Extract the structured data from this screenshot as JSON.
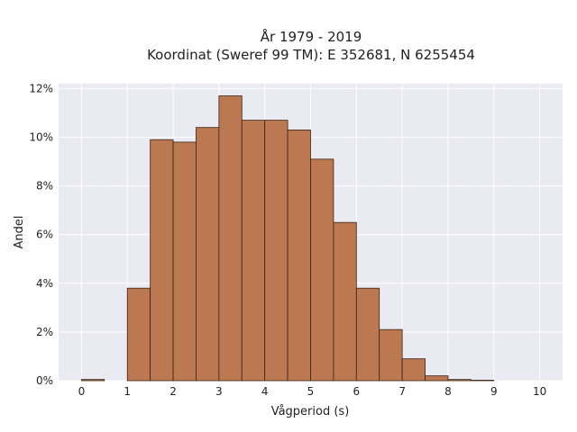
{
  "chart_data": {
    "type": "bar",
    "title_line1": "År 1979 - 2019",
    "title_line2": "Koordinat (Sweref 99 TM): E 352681, N 6255454",
    "xlabel": "Vågperiod (s)",
    "ylabel": "Andel",
    "bin_width": 0.5,
    "x": [
      0,
      0.5,
      1,
      1.5,
      2,
      2.5,
      3,
      3.5,
      4,
      4.5,
      5,
      5.5,
      6,
      6.5,
      7,
      7.5,
      8,
      8.5,
      9,
      9.5
    ],
    "values": [
      0.05,
      0,
      3.8,
      9.9,
      9.8,
      10.4,
      11.7,
      10.7,
      10.7,
      10.3,
      9.1,
      6.5,
      3.8,
      2.1,
      0.9,
      0.2,
      0.05,
      0.02,
      0,
      0
    ],
    "xlim": [
      -0.5,
      10.5
    ],
    "ylim": [
      0,
      12.2
    ],
    "x_ticks": [
      0,
      1,
      2,
      3,
      4,
      5,
      6,
      7,
      8,
      9,
      10
    ],
    "x_tick_labels": [
      "0",
      "1",
      "2",
      "3",
      "4",
      "5",
      "6",
      "7",
      "8",
      "9",
      "10"
    ],
    "y_ticks": [
      0,
      2,
      4,
      6,
      8,
      10,
      12
    ],
    "y_tick_labels": [
      "0%",
      "2%",
      "4%",
      "6%",
      "8%",
      "10%",
      "12%"
    ],
    "grid": true,
    "bar_color": "#bc7851",
    "bar_edge_color": "#3a2414",
    "plot_background": "#eaeaf2",
    "grid_color": "#ffffff"
  }
}
